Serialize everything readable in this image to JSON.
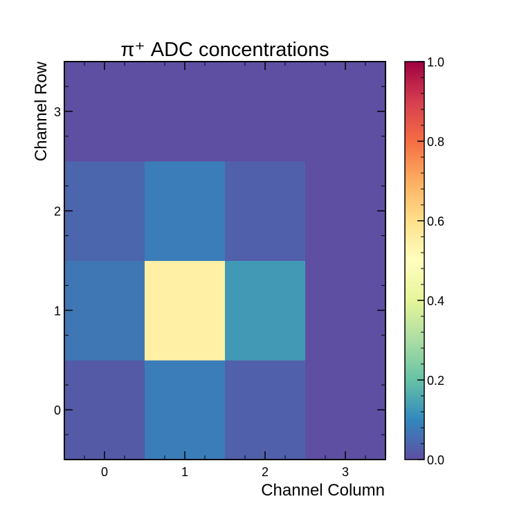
{
  "chart_data": {
    "type": "heatmap",
    "title": "π⁺ ADC concentrations",
    "xlabel": "Channel Column",
    "ylabel": "Channel Row",
    "x_categories": [
      "0",
      "1",
      "2",
      "3"
    ],
    "y_categories": [
      "0",
      "1",
      "2",
      "3"
    ],
    "values": [
      [
        0.02,
        0.08,
        0.03,
        0.0
      ],
      [
        0.07,
        0.55,
        0.13,
        0.0
      ],
      [
        0.04,
        0.08,
        0.03,
        0.0
      ],
      [
        0.0,
        0.0,
        0.0,
        0.0
      ]
    ],
    "colorbar": {
      "min": 0.0,
      "max": 1.0,
      "ticks": [
        "0.0",
        "0.2",
        "0.4",
        "0.6",
        "0.8",
        "1.0"
      ],
      "colormap": "Spectral_r"
    },
    "grid": false
  }
}
